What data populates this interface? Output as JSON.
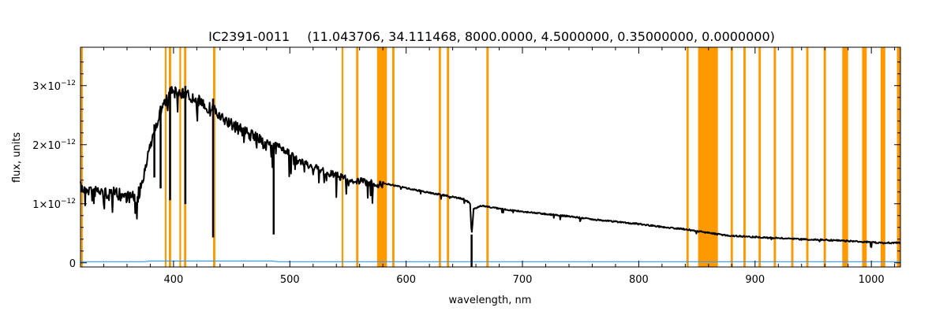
{
  "chart_data": {
    "type": "line",
    "title_id": "IC2391-0011",
    "title_params": "(11.043706, 34.111468, 8000.0000, 4.5000000, 0.35000000, 0.0000000)",
    "xlabel": "wavelength, nm",
    "ylabel": "flux, units",
    "xlim": [
      320,
      1025
    ],
    "ylim": [
      -7e-14,
      3.65e-12
    ],
    "x_ticks": [
      400,
      500,
      600,
      700,
      800,
      900,
      1000
    ],
    "y_ticks": [
      {
        "value": 0,
        "label": "0",
        "exponent": ""
      },
      {
        "value": 1e-12,
        "label": "1×10",
        "exponent": "−12"
      },
      {
        "value": 2e-12,
        "label": "2×10",
        "exponent": "−12"
      },
      {
        "value": 3e-12,
        "label": "3×10",
        "exponent": "−12"
      }
    ],
    "colors": {
      "spectrum": "#000000",
      "masked_regions": "#ff9900",
      "error": "#3399ff"
    },
    "masked_regions_nm": [
      [
        320.5,
        322
      ],
      [
        392.5,
        394
      ],
      [
        396,
        398
      ],
      [
        405,
        406.5
      ],
      [
        409,
        411
      ],
      [
        434,
        436
      ],
      [
        544.5,
        546
      ],
      [
        557,
        559
      ],
      [
        575,
        583.5
      ],
      [
        588,
        590
      ],
      [
        628,
        630
      ],
      [
        635,
        637
      ],
      [
        669,
        671
      ],
      [
        841,
        843
      ],
      [
        851,
        868
      ],
      [
        879,
        881
      ],
      [
        890,
        892
      ],
      [
        903,
        905
      ],
      [
        916,
        918
      ],
      [
        931,
        933
      ],
      [
        944,
        946
      ],
      [
        959,
        961
      ],
      [
        975,
        980
      ],
      [
        992,
        996
      ],
      [
        1008,
        1012
      ],
      [
        1022,
        1025
      ]
    ],
    "series": [
      {
        "x": [
          320,
          330,
          340,
          350,
          360,
          368,
          372,
          376,
          380,
          385,
          390,
          395,
          400,
          405,
          410,
          415,
          420,
          425,
          430,
          434,
          438,
          445,
          455,
          465,
          475,
          480,
          483,
          486,
          490,
          500,
          510,
          520,
          530,
          540,
          550,
          560,
          570,
          578,
          590,
          600,
          620,
          640,
          650,
          655,
          656.3,
          658,
          665,
          680,
          700,
          720,
          740,
          760,
          780,
          800,
          820,
          840,
          850,
          860,
          870,
          880,
          890,
          900,
          920,
          940,
          960,
          980,
          1000,
          1010,
          1025
        ],
        "y": [
          1.38e-12,
          1.34e-12,
          1.3e-12,
          1.28e-12,
          1.24e-12,
          1.2e-12,
          1.4e-12,
          1.7e-12,
          2.1e-12,
          2.45e-12,
          2.72e-12,
          2.9e-12,
          3.05e-12,
          2.95e-12,
          3e-12,
          2.88e-12,
          2.85e-12,
          2.82e-12,
          2.7e-12,
          2.78e-12,
          2.58e-12,
          2.5e-12,
          2.38e-12,
          2.28e-12,
          2.16e-12,
          2.1e-12,
          2.05e-12,
          2.03e-12,
          2.05e-12,
          1.9e-12,
          1.76e-12,
          1.68e-12,
          1.6e-12,
          1.54e-12,
          1.47e-12,
          1.44e-12,
          1.41e-12,
          1.38e-12,
          1.32e-12,
          1.28e-12,
          1.2e-12,
          1.13e-12,
          1.09e-12,
          1.02e-12,
          4.8e-13,
          9.2e-13,
          9.8e-13,
          9.3e-13,
          8.8e-13,
          8.4e-13,
          8e-13,
          7.5e-13,
          7.1e-13,
          6.7e-13,
          6.2e-13,
          5.8e-13,
          5.5e-13,
          5.2e-13,
          4.9e-13,
          4.7e-13,
          4.6e-13,
          4.5e-13,
          4.3e-13,
          4.1e-13,
          4e-13,
          3.8e-13,
          3.6e-13,
          3.5e-13,
          3.5e-13
        ]
      },
      {
        "x": [
          320,
          375,
          380,
          485,
          490,
          1025
        ],
        "y": [
          2e-14,
          2e-14,
          3e-14,
          3e-14,
          2e-14,
          2e-14
        ]
      }
    ],
    "absorption_lines": [
      {
        "x": 383.5,
        "depth": 9e-13
      },
      {
        "x": 388.9,
        "depth": 1.4e-12
      },
      {
        "x": 397.0,
        "depth": 1.9e-12
      },
      {
        "x": 410.2,
        "depth": 2e-12
      },
      {
        "x": 434.0,
        "depth": 2.35e-12
      },
      {
        "x": 486.1,
        "depth": 1.55e-12
      },
      {
        "x": 656.3,
        "depth": 5.5e-13
      }
    ]
  }
}
